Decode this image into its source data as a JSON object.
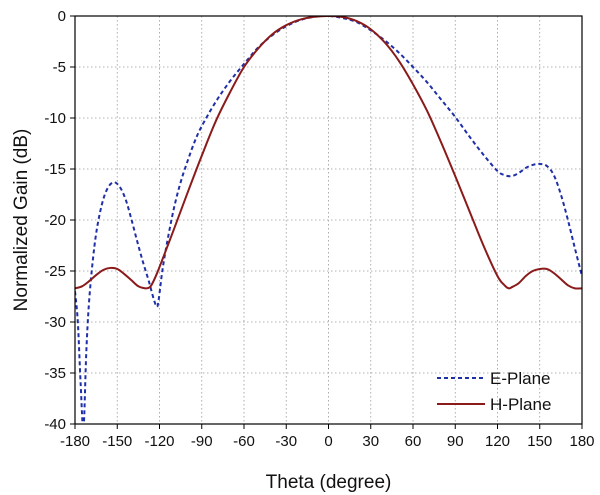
{
  "chart_data": {
    "type": "line",
    "title": "",
    "xlabel": "Theta (degree)",
    "ylabel": "Normalized Gain (dB)",
    "xlim": [
      -180,
      180
    ],
    "ylim": [
      -40,
      0
    ],
    "xticks": [
      -180,
      -150,
      -120,
      -90,
      -60,
      -30,
      0,
      30,
      60,
      90,
      120,
      150,
      180
    ],
    "xtick_labels": [
      "-180",
      "-150",
      "-120",
      "-90",
      "-60",
      "-30",
      "0",
      "30",
      "60",
      "90",
      "120",
      "150",
      "180"
    ],
    "yticks": [
      0,
      -5,
      -10,
      -15,
      -20,
      -25,
      -30,
      -35,
      -40
    ],
    "ytick_labels": [
      "0",
      "-5",
      "-10",
      "-15",
      "-20",
      "-25",
      "-30",
      "-35",
      "-40"
    ],
    "grid": true,
    "legend_position": "bottom-right",
    "series": [
      {
        "name": "E-Plane",
        "color": "#1f2fa8",
        "style": "dashed",
        "x": [
          -180,
          -178,
          -176,
          -174,
          -172,
          -170,
          -167,
          -164,
          -160,
          -156,
          -152,
          -148,
          -144,
          -140,
          -136,
          -132,
          -128,
          -126,
          -124,
          -122,
          -121,
          -120,
          -118,
          -115,
          -110,
          -105,
          -100,
          -95,
          -90,
          -80,
          -70,
          -60,
          -50,
          -40,
          -30,
          -20,
          -10,
          0,
          10,
          20,
          30,
          40,
          50,
          60,
          70,
          80,
          90,
          100,
          110,
          120,
          125,
          130,
          135,
          140,
          145,
          150,
          155,
          160,
          165,
          170,
          175,
          180
        ],
        "y": [
          -27,
          -30,
          -36,
          -40.5,
          -33,
          -28,
          -23.5,
          -20.5,
          -18,
          -16.7,
          -16.3,
          -16.8,
          -18,
          -19.9,
          -22,
          -24,
          -25.8,
          -26.8,
          -27.8,
          -28.5,
          -28.2,
          -27.2,
          -25,
          -22.5,
          -19,
          -16.3,
          -14.2,
          -12.3,
          -10.8,
          -8.4,
          -6.4,
          -4.7,
          -3.1,
          -1.9,
          -1.0,
          -0.4,
          -0.08,
          0,
          -0.2,
          -0.6,
          -1.4,
          -2.4,
          -3.6,
          -5.0,
          -6.5,
          -8.2,
          -9.9,
          -11.8,
          -13.6,
          -15.2,
          -15.6,
          -15.7,
          -15.4,
          -14.9,
          -14.6,
          -14.5,
          -14.7,
          -15.6,
          -17.5,
          -20,
          -22.8,
          -25.5
        ]
      },
      {
        "name": "H-Plane",
        "color": "#8b1a1a",
        "style": "solid",
        "x": [
          -180,
          -175,
          -170,
          -165,
          -160,
          -155,
          -150,
          -145,
          -140,
          -135,
          -130,
          -127,
          -125,
          -122,
          -118,
          -110,
          -100,
          -90,
          -80,
          -70,
          -60,
          -50,
          -40,
          -30,
          -20,
          -10,
          0,
          10,
          20,
          30,
          40,
          50,
          60,
          70,
          80,
          90,
          100,
          110,
          120,
          125,
          128,
          130,
          135,
          140,
          145,
          150,
          155,
          160,
          165,
          170,
          175,
          180
        ],
        "y": [
          -26.7,
          -26.5,
          -26.0,
          -25.4,
          -24.9,
          -24.7,
          -24.8,
          -25.3,
          -25.9,
          -26.5,
          -26.7,
          -26.6,
          -26.2,
          -25.3,
          -23.9,
          -21.0,
          -17.3,
          -13.7,
          -10.3,
          -7.5,
          -5.0,
          -3.2,
          -1.8,
          -0.9,
          -0.35,
          -0.08,
          0,
          -0.1,
          -0.5,
          -1.3,
          -2.6,
          -4.4,
          -6.7,
          -9.3,
          -12.4,
          -15.7,
          -19.1,
          -22.5,
          -25.5,
          -26.4,
          -26.7,
          -26.6,
          -26.2,
          -25.5,
          -25.0,
          -24.8,
          -24.8,
          -25.2,
          -25.8,
          -26.4,
          -26.7,
          -26.7
        ]
      }
    ]
  }
}
